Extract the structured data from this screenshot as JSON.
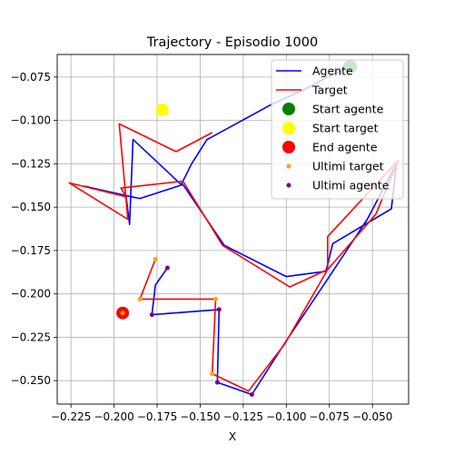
{
  "chart_data": {
    "type": "line",
    "title": "Trajectory - Episodio 1000",
    "xlabel": "X",
    "ylabel": "",
    "xlim": [
      -0.233,
      -0.029
    ],
    "ylim": [
      -0.2635,
      -0.062
    ],
    "grid": true,
    "legend_position": "top-right",
    "x_ticks": [
      -0.225,
      -0.2,
      -0.175,
      -0.15,
      -0.125,
      -0.1,
      -0.075,
      -0.05
    ],
    "x_tick_labels": [
      "−0.225",
      "−0.200",
      "−0.175",
      "−0.150",
      "−0.125",
      "−0.100",
      "−0.075",
      "−0.050"
    ],
    "y_ticks": [
      -0.075,
      -0.1,
      -0.125,
      -0.15,
      -0.175,
      -0.2,
      -0.225,
      -0.25
    ],
    "y_tick_labels": [
      "−0.075",
      "−0.100",
      "−0.125",
      "−0.150",
      "−0.175",
      "−0.200",
      "−0.225",
      "−0.250"
    ],
    "series": [
      {
        "name": "Agente",
        "kind": "line",
        "color": "#0000ff",
        "x": [
          -0.063,
          -0.076,
          -0.089,
          -0.109,
          -0.144,
          -0.146,
          -0.155,
          -0.161,
          -0.189,
          -0.191,
          -0.193,
          -0.217,
          -0.19,
          -0.185,
          -0.16,
          -0.136,
          -0.1,
          -0.077,
          -0.073,
          -0.039,
          -0.036,
          -0.053,
          -0.075,
          -0.1,
          -0.12,
          -0.14,
          -0.139,
          -0.178,
          -0.176,
          -0.169
        ],
        "y": [
          -0.069,
          -0.075,
          -0.082,
          -0.091,
          -0.11,
          -0.111,
          -0.125,
          -0.137,
          -0.111,
          -0.16,
          -0.144,
          -0.138,
          -0.144,
          -0.145,
          -0.137,
          -0.172,
          -0.19,
          -0.187,
          -0.171,
          -0.151,
          -0.125,
          -0.157,
          -0.19,
          -0.227,
          -0.258,
          -0.251,
          -0.209,
          -0.212,
          -0.195,
          -0.185
        ]
      },
      {
        "name": "Target",
        "kind": "line",
        "color": "#ff0000",
        "x": [
          -0.143,
          -0.164,
          -0.197,
          -0.192,
          -0.226,
          -0.193,
          -0.196,
          -0.16,
          -0.137,
          -0.098,
          -0.076,
          -0.076,
          -0.035,
          -0.048,
          -0.076,
          -0.101,
          -0.122,
          -0.143,
          -0.141,
          -0.185,
          -0.176
        ],
        "y": [
          -0.107,
          -0.118,
          -0.102,
          -0.157,
          -0.136,
          -0.144,
          -0.139,
          -0.135,
          -0.172,
          -0.196,
          -0.186,
          -0.167,
          -0.123,
          -0.154,
          -0.186,
          -0.229,
          -0.256,
          -0.246,
          -0.203,
          -0.203,
          -0.18
        ]
      },
      {
        "name": "Start agente",
        "kind": "marker",
        "color": "#008000",
        "x": [
          -0.063
        ],
        "y": [
          -0.069
        ]
      },
      {
        "name": "Start target",
        "kind": "marker",
        "color": "#ffff00",
        "x": [
          -0.172
        ],
        "y": [
          -0.094
        ]
      },
      {
        "name": "End agente",
        "kind": "marker",
        "color": "#ff0000",
        "x": [
          -0.195
        ],
        "y": [
          -0.211
        ]
      },
      {
        "name": "Ultimi target",
        "kind": "scatter",
        "color": "#ffa500",
        "x": [
          -0.143,
          -0.141,
          -0.185,
          -0.176,
          -0.195
        ],
        "y": [
          -0.246,
          -0.203,
          -0.203,
          -0.18,
          -0.211
        ]
      },
      {
        "name": "Ultimi agente",
        "kind": "scatter",
        "color": "#800080",
        "x": [
          -0.12,
          -0.14,
          -0.139,
          -0.178,
          -0.169
        ],
        "y": [
          -0.258,
          -0.251,
          -0.209,
          -0.212,
          -0.185
        ]
      }
    ]
  }
}
